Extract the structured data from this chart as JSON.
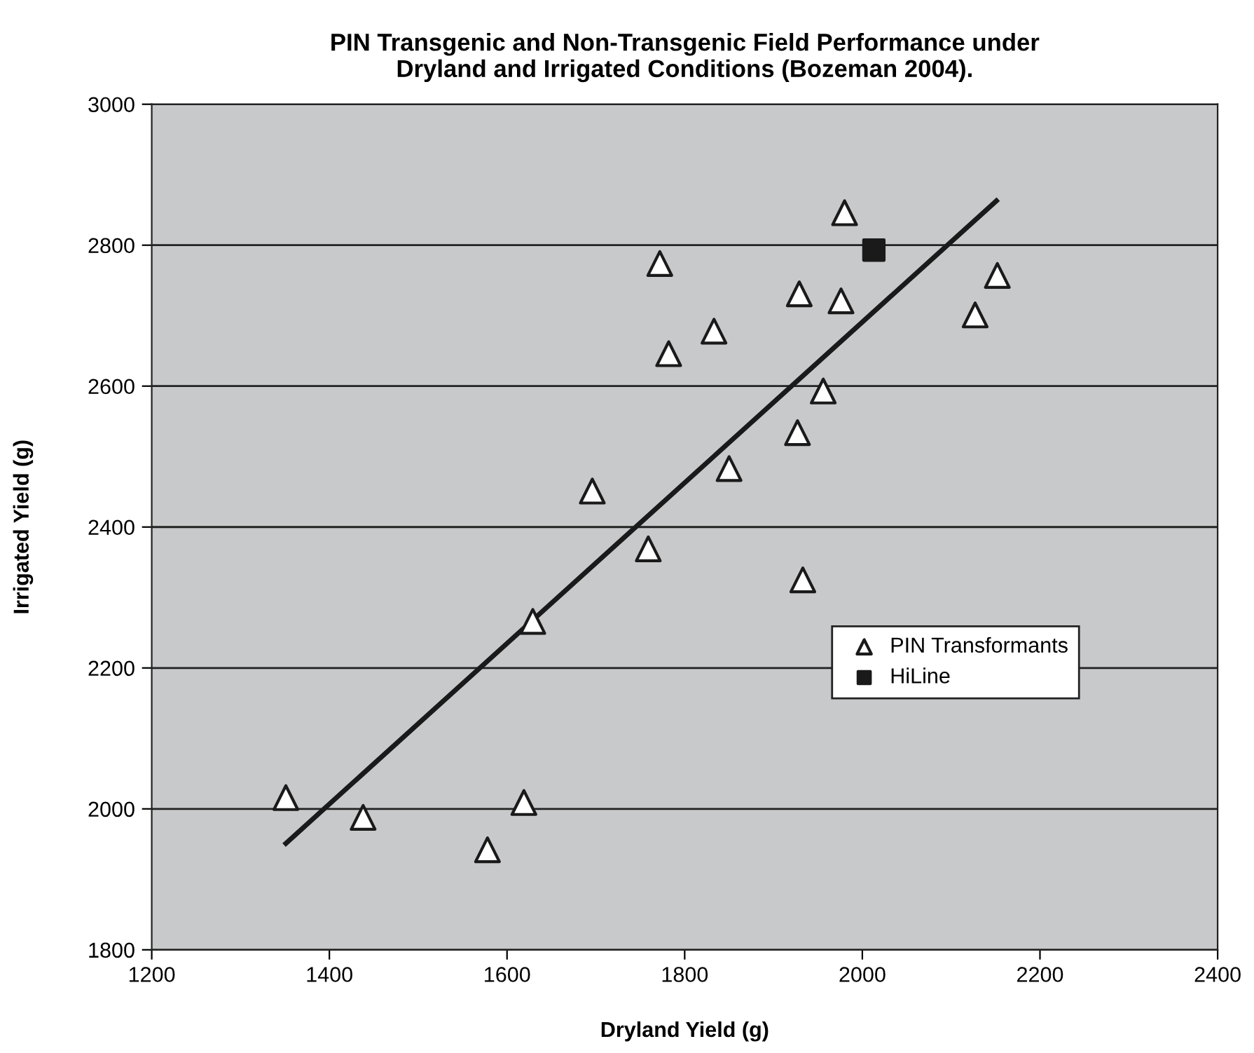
{
  "chart_data": {
    "type": "scatter",
    "title": "PIN Transgenic and Non-Transgenic Field Performance under\nDryland and Irrigated Conditions (Bozeman 2004).",
    "xlabel": "Dryland Yield (g)",
    "ylabel": "Irrigated Yield (g)",
    "xlim": [
      1200,
      2400
    ],
    "xticks": [
      1200,
      1400,
      1600,
      1800,
      2000,
      2200,
      2400
    ],
    "ylim": [
      1800,
      3000
    ],
    "yticks": [
      1800,
      2000,
      2200,
      2400,
      2600,
      2800,
      3000
    ],
    "grid": "y",
    "legend": "center right",
    "series": [
      {
        "name": "PIN Transformants",
        "color": "#ffffff",
        "marker": "triangle",
        "x": [
          1980,
          1772,
          1929,
          1976,
          2152,
          2127,
          1833,
          1782,
          1956,
          1927,
          1850,
          1696,
          1759,
          1933,
          1351,
          1438,
          1578,
          1619,
          1629
        ],
        "values": [
          2846,
          2774,
          2731,
          2721,
          2757,
          2701,
          2678,
          2646,
          2593,
          2534,
          2483,
          2451,
          2369,
          2325,
          2016,
          1988,
          1942,
          2009,
          2266
        ]
      },
      {
        "name": "HiLine",
        "color": "#1a1a1a",
        "marker": "square",
        "x": [
          2013
        ],
        "values": [
          2793
        ]
      },
      {
        "type": "line",
        "color": "#1a1a1a",
        "marker": "none",
        "line_style": "solid",
        "x": [
          1351,
          2151
        ],
        "values": [
          1951,
          2863
        ]
      }
    ]
  }
}
